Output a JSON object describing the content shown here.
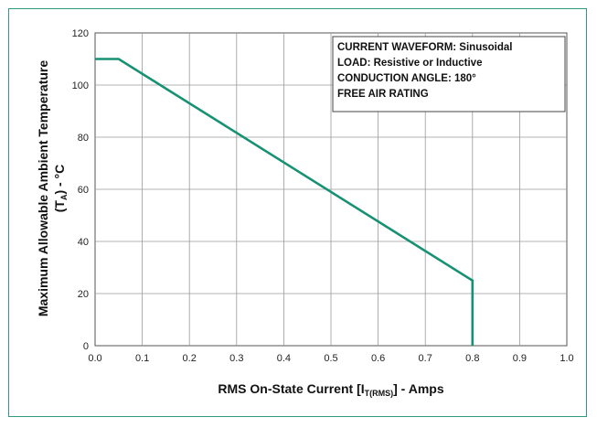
{
  "chart_data": {
    "type": "line",
    "title": "",
    "xlabel": {
      "prefix": "RMS On-State Current [I",
      "sub": "T(RMS)",
      "suffix": "] - Amps"
    },
    "ylabel": {
      "line1": "Maximum Allowable Ambient Temperature",
      "line2_prefix": "(T",
      "line2_sub": "A",
      "line2_suffix": ") - °C"
    },
    "xlim": [
      0.0,
      1.0
    ],
    "ylim": [
      0,
      120
    ],
    "x_ticks": [
      "0.0",
      "0.1",
      "0.2",
      "0.3",
      "0.4",
      "0.5",
      "0.6",
      "0.7",
      "0.8",
      "0.9",
      "1.0"
    ],
    "y_ticks": [
      "0",
      "20",
      "40",
      "60",
      "80",
      "100",
      "120"
    ],
    "grid": true,
    "series": [
      {
        "color": "#169173",
        "x": [
          0.0,
          0.05,
          0.8,
          0.8
        ],
        "y": [
          110,
          110,
          25,
          0
        ]
      }
    ],
    "annotations": [
      "CURRENT WAVEFORM: Sinusoidal",
      "LOAD: Resistive or Inductive",
      "CONDUCTION ANGLE: 180°",
      "FREE AIR RATING"
    ]
  }
}
